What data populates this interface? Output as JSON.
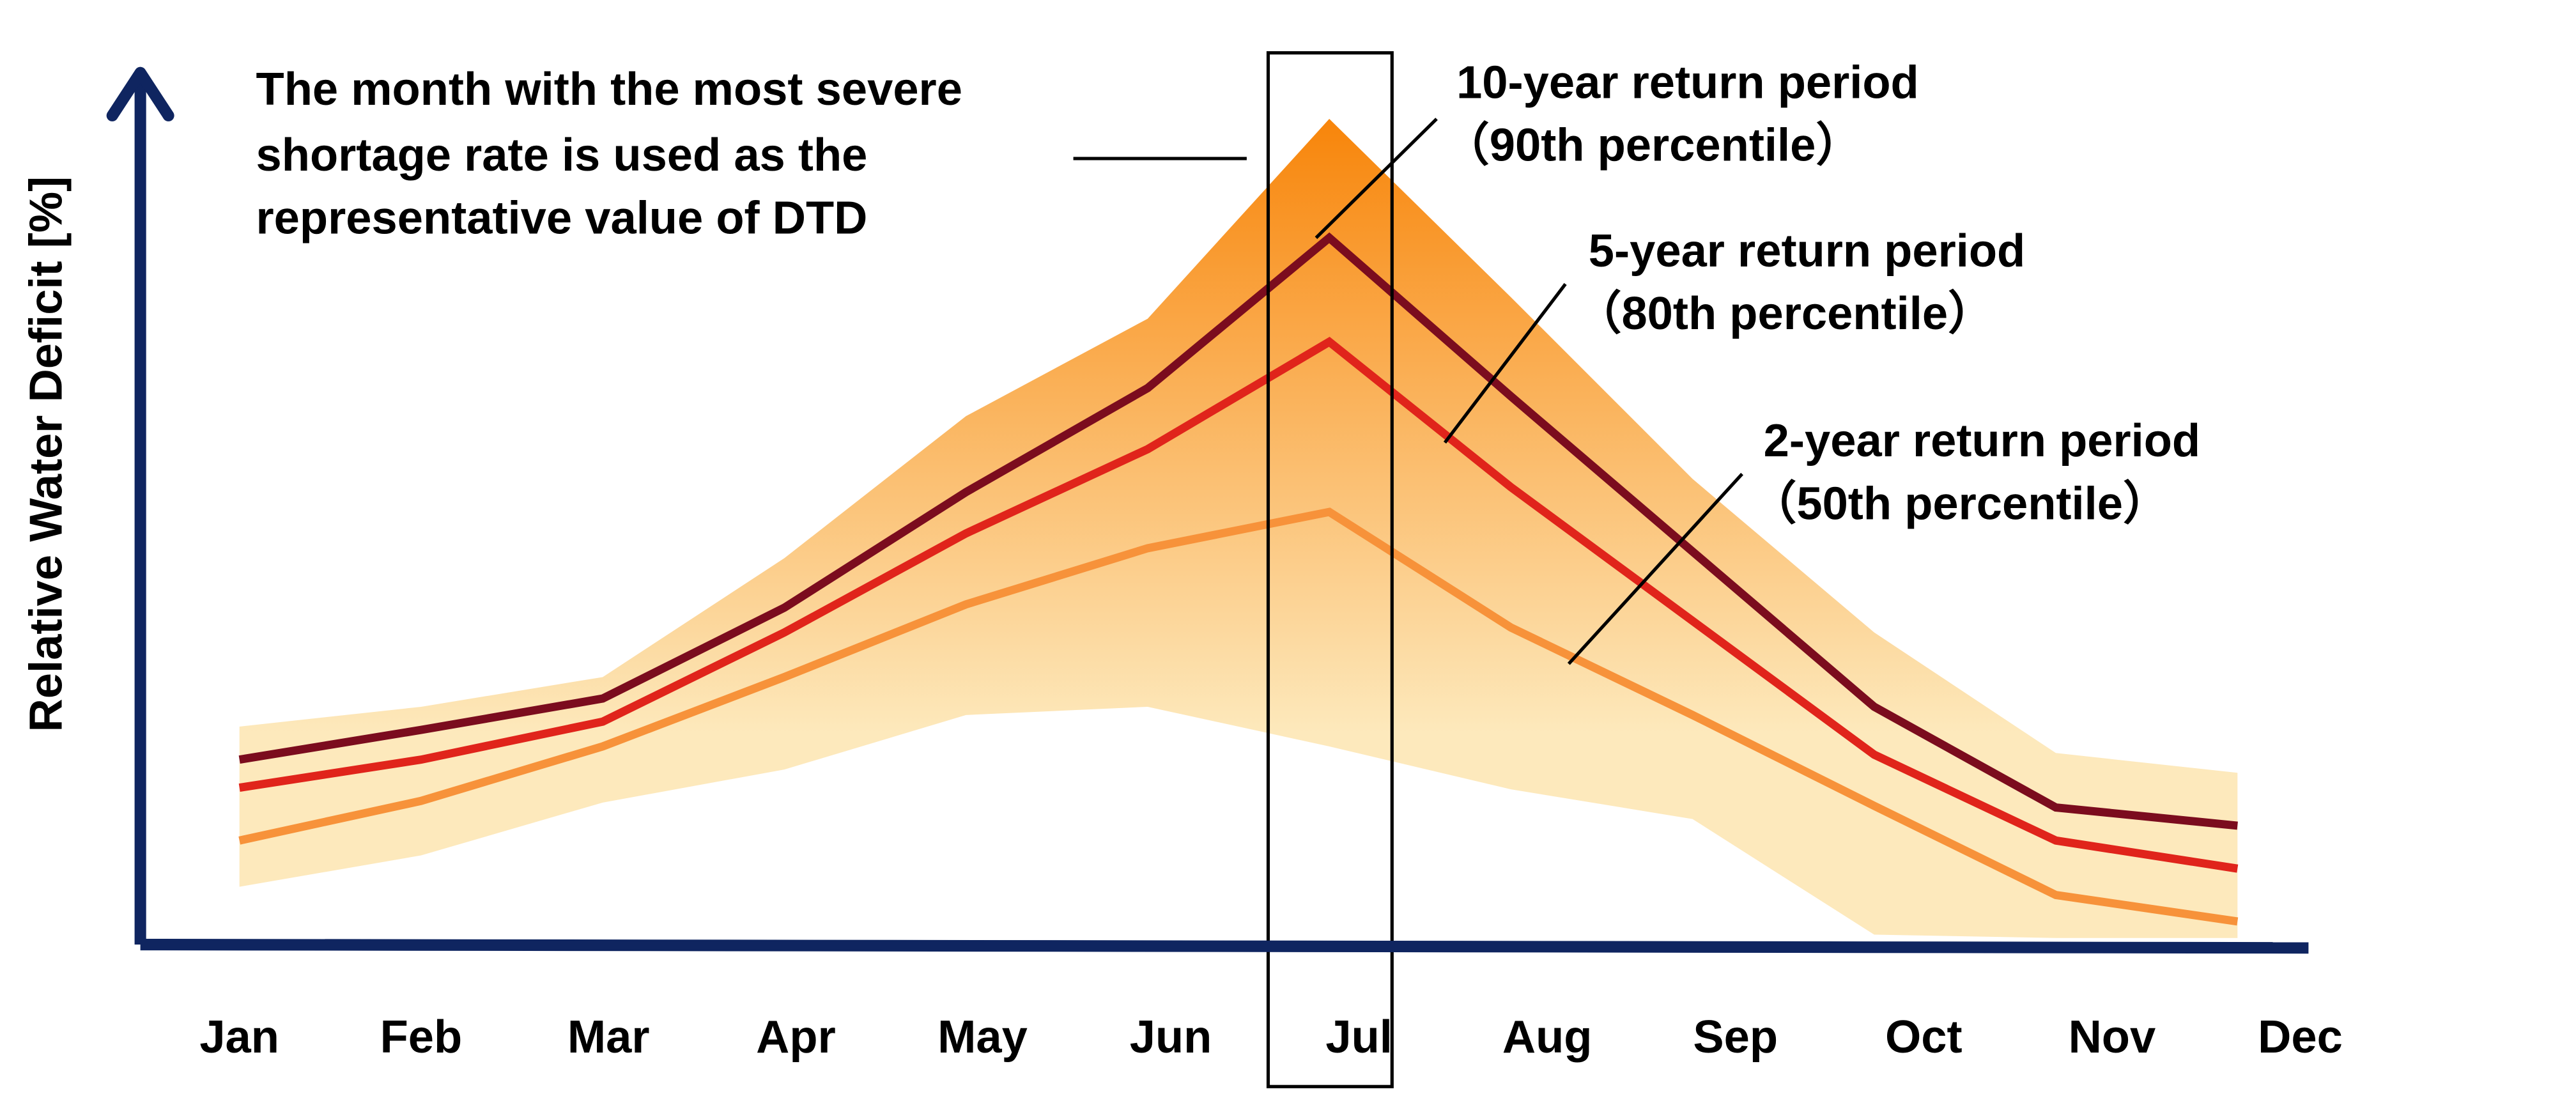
{
  "chart_data": {
    "type": "line",
    "y_label": "Relative Water Deficit [%]",
    "categories": [
      "Jan",
      "Feb",
      "Mar",
      "Apr",
      "May",
      "Jun",
      "Jul",
      "Aug",
      "Sep",
      "Oct",
      "Nov",
      "Dec"
    ],
    "ylim": [
      0,
      100
    ],
    "highlight_index": 6,
    "annotation": [
      "The month with the most severe",
      "shortage rate is used as the",
      "representative value of DTD"
    ],
    "band": {
      "colors": [
        "#f8850a",
        "#fde9bc"
      ],
      "upper": [
        26.4,
        28.8,
        32.4,
        46.8,
        64,
        75.8,
        100,
        78.4,
        56.4,
        37.8,
        23.2,
        20.8
      ],
      "lower": [
        7,
        10.8,
        17.2,
        21.2,
        27.8,
        28.8,
        24,
        18.8,
        15.2,
        1.2,
        0.8,
        0.8
      ]
    },
    "series": [
      {
        "name": "10-year return period",
        "note": "（90th percentile）",
        "color": "#7b0c1e",
        "values": [
          22.4,
          26,
          29.8,
          40.8,
          54.8,
          67.4,
          85.6,
          66.4,
          47.6,
          28.8,
          16.6,
          14.4
        ]
      },
      {
        "name": "5-year return period",
        "note": "（80th percentile）",
        "color": "#e0241b",
        "values": [
          19,
          22.4,
          27,
          37.8,
          49.8,
          60,
          73,
          55.4,
          39.2,
          23,
          12.6,
          9.2
        ]
      },
      {
        "name": "2-year return period",
        "note": "（50th percentile）",
        "color": "#f7923a",
        "values": [
          12.6,
          17.4,
          24,
          32.4,
          41.2,
          48,
          52.4,
          38.4,
          27.8,
          16.8,
          6,
          2.8
        ]
      }
    ]
  }
}
